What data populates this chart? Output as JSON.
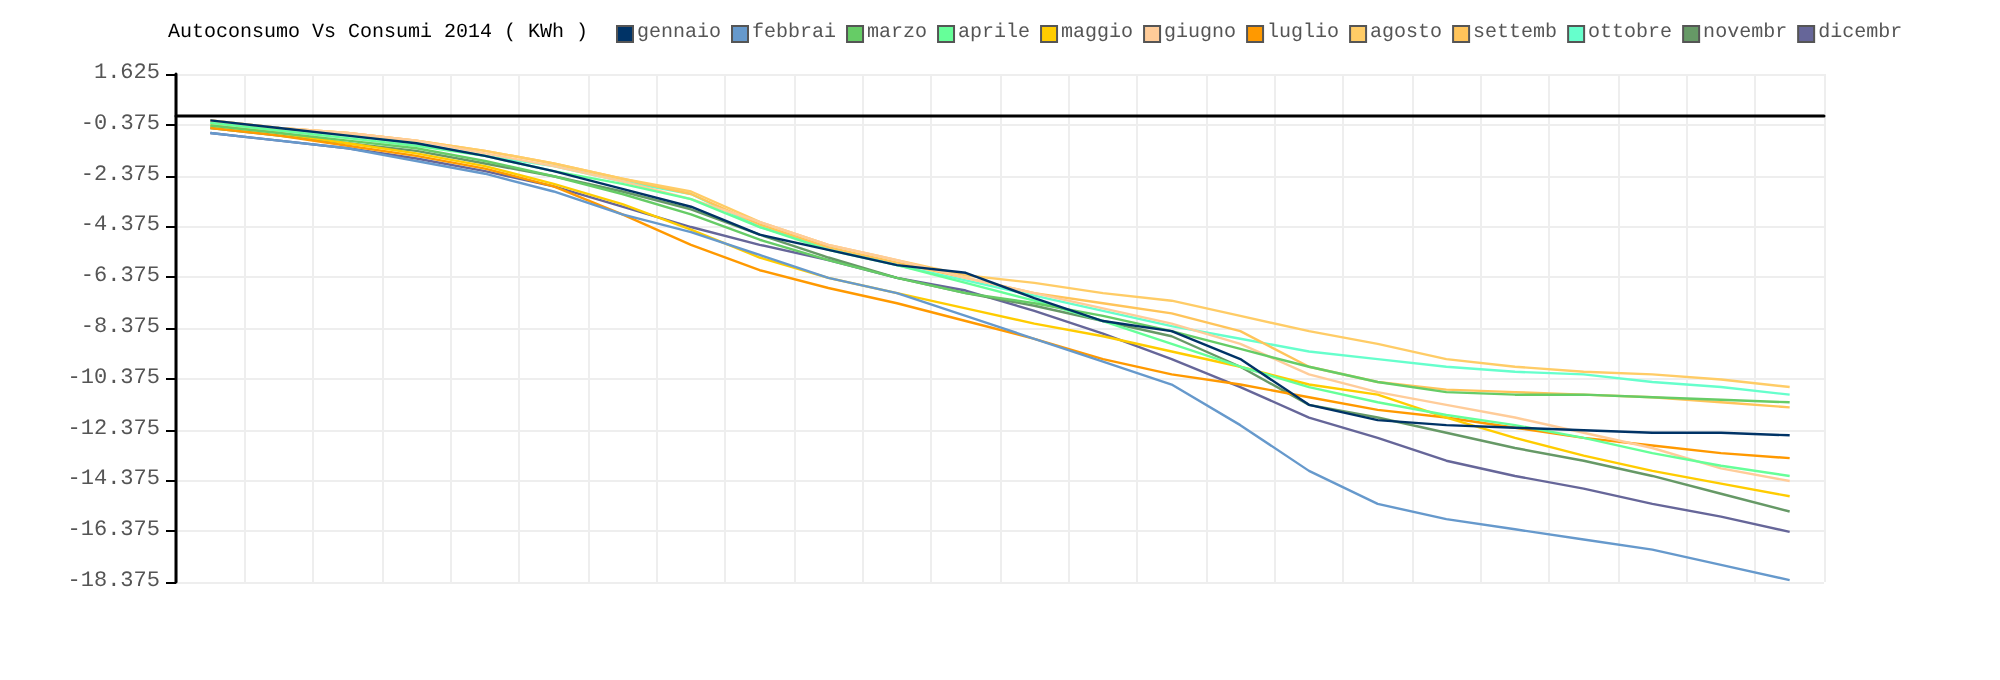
{
  "chart_data": {
    "type": "line",
    "title": "Autoconsumo Vs Consumi 2014 ( KWh )",
    "categories": [
      null,
      null,
      null,
      null,
      null,
      null,
      null,
      null,
      null,
      null,
      null,
      null,
      null,
      null,
      null,
      null,
      null,
      null,
      null,
      null,
      null,
      null,
      null,
      null
    ],
    "ylim": [
      -18.375,
      1.625
    ],
    "yticks": [
      1.625,
      -0.375,
      -2.375,
      -4.375,
      -6.375,
      -8.375,
      -10.375,
      -12.375,
      -14.375,
      -16.375,
      -18.375
    ],
    "grid": true,
    "legend": "top",
    "marker": "none",
    "line_style": "solid",
    "tick_labels": "y",
    "series": [
      {
        "name": "gennaio",
        "color": "#003366",
        "values": [
          -0.2,
          -0.5,
          -0.8,
          -1.1,
          -1.6,
          -2.2,
          -2.9,
          -3.6,
          -4.7,
          -5.3,
          -5.9,
          -6.2,
          -7.2,
          -8.1,
          -8.5,
          -9.6,
          -11.4,
          -12.0,
          -12.2,
          -12.3,
          -12.4,
          -12.5,
          -12.5,
          -12.6
        ]
      },
      {
        "name": "febbrai",
        "color": "#6699cc",
        "values": [
          -0.7,
          -1.0,
          -1.3,
          -1.8,
          -2.3,
          -3.0,
          -3.9,
          -4.6,
          -5.5,
          -6.4,
          -7.0,
          -7.9,
          -8.8,
          -9.7,
          -10.6,
          -12.2,
          -14.0,
          -15.3,
          -15.9,
          -16.3,
          -16.7,
          -17.1,
          -17.7,
          -18.3
        ]
      },
      {
        "name": "marzo",
        "color": "#66cc66",
        "values": [
          -0.4,
          -0.7,
          -1.0,
          -1.3,
          -1.8,
          -2.4,
          -3.1,
          -3.9,
          -4.9,
          -5.7,
          -6.4,
          -7.0,
          -7.4,
          -7.9,
          -8.5,
          -9.2,
          -9.9,
          -10.5,
          -10.9,
          -11.0,
          -11.0,
          -11.1,
          -11.2,
          -11.3
        ]
      },
      {
        "name": "aprile",
        "color": "#66ff99",
        "values": [
          -0.3,
          -0.6,
          -0.9,
          -1.2,
          -1.6,
          -2.2,
          -2.7,
          -3.3,
          -4.4,
          -5.3,
          -5.9,
          -6.6,
          -7.3,
          -8.1,
          -9.0,
          -9.9,
          -10.7,
          -11.3,
          -11.8,
          -12.2,
          -12.7,
          -13.3,
          -13.8,
          -14.2
        ]
      },
      {
        "name": "maggio",
        "color": "#ffcc00",
        "values": [
          -0.4,
          -0.7,
          -1.1,
          -1.5,
          -2.0,
          -2.7,
          -3.5,
          -4.5,
          -5.6,
          -6.4,
          -7.0,
          -7.6,
          -8.2,
          -8.7,
          -9.3,
          -9.9,
          -10.6,
          -11.0,
          -11.9,
          -12.7,
          -13.4,
          -14.0,
          -14.5,
          -15.0
        ]
      },
      {
        "name": "giugno",
        "color": "#ffcc99",
        "values": [
          -0.2,
          -0.5,
          -0.7,
          -1.0,
          -1.5,
          -2.0,
          -2.6,
          -3.3,
          -4.2,
          -5.1,
          -5.7,
          -6.4,
          -7.0,
          -7.6,
          -8.2,
          -9.0,
          -10.2,
          -10.9,
          -11.4,
          -11.9,
          -12.5,
          -13.1,
          -13.9,
          -14.4
        ]
      },
      {
        "name": "luglio",
        "color": "#ff9900",
        "values": [
          -0.5,
          -0.8,
          -1.2,
          -1.6,
          -2.1,
          -2.8,
          -3.9,
          -5.1,
          -6.1,
          -6.8,
          -7.4,
          -8.1,
          -8.8,
          -9.6,
          -10.2,
          -10.6,
          -11.1,
          -11.6,
          -11.9,
          -12.3,
          -12.7,
          -13.0,
          -13.3,
          -13.5
        ]
      },
      {
        "name": "agosto",
        "color": "#ffcc66",
        "values": [
          -0.2,
          -0.5,
          -0.7,
          -1.0,
          -1.4,
          -1.9,
          -2.5,
          -3.0,
          -4.2,
          -5.1,
          -5.7,
          -6.3,
          -6.6,
          -7.0,
          -7.3,
          -7.9,
          -8.5,
          -9.0,
          -9.6,
          -9.9,
          -10.1,
          -10.2,
          -10.4,
          -10.7
        ]
      },
      {
        "name": "settemb",
        "color": "#ffc45a",
        "values": [
          -0.2,
          -0.5,
          -0.7,
          -1.0,
          -1.4,
          -1.9,
          -2.5,
          -3.1,
          -4.3,
          -5.2,
          -5.8,
          -6.4,
          -7.0,
          -7.4,
          -7.8,
          -8.5,
          -9.9,
          -10.5,
          -10.8,
          -10.9,
          -11.0,
          -11.1,
          -11.3,
          -11.5
        ]
      },
      {
        "name": "ottobre",
        "color": "#66ffcc",
        "values": [
          -0.3,
          -0.5,
          -0.8,
          -1.1,
          -1.6,
          -2.0,
          -2.6,
          -3.1,
          -4.4,
          -5.2,
          -5.9,
          -6.5,
          -7.1,
          -7.7,
          -8.3,
          -8.8,
          -9.3,
          -9.6,
          -9.9,
          -10.1,
          -10.2,
          -10.5,
          -10.7,
          -11.0
        ]
      },
      {
        "name": "novembr",
        "color": "#669966",
        "values": [
          -0.5,
          -0.8,
          -1.1,
          -1.4,
          -1.9,
          -2.4,
          -3.0,
          -3.7,
          -4.7,
          -5.6,
          -6.4,
          -7.0,
          -7.5,
          -8.1,
          -8.7,
          -9.9,
          -11.4,
          -11.9,
          -12.5,
          -13.1,
          -13.6,
          -14.2,
          -14.9,
          -15.6
        ]
      },
      {
        "name": "dicembr",
        "color": "#666699",
        "values": [
          -0.7,
          -1.0,
          -1.3,
          -1.7,
          -2.2,
          -2.8,
          -3.6,
          -4.4,
          -5.1,
          -5.7,
          -6.4,
          -6.9,
          -7.7,
          -8.6,
          -9.6,
          -10.7,
          -11.9,
          -12.7,
          -13.6,
          -14.2,
          -14.7,
          -15.3,
          -15.8,
          -16.4
        ]
      }
    ]
  }
}
